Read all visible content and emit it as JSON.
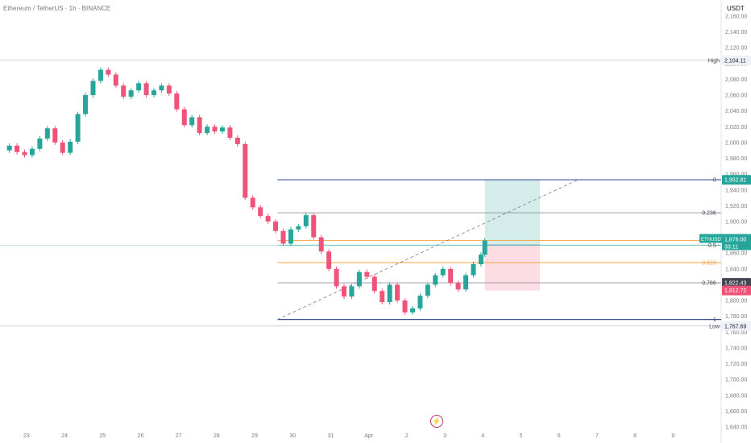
{
  "header": {
    "symbol": "Ethereum / TetherUS · 1h · BINANCE",
    "currency": "USDT"
  },
  "colors": {
    "up": "#26a69a",
    "down": "#ef5379",
    "fib_blue": "#3d4b9c",
    "fib_grey": "#8c8f99",
    "fib_teal": "#4db6ac",
    "fib_orange": "#f7a23a",
    "target_zone": "#26a69a",
    "stop_zone": "#ef5379"
  },
  "footer": {
    "event_icon": "lightning-icon"
  },
  "chart_data": {
    "type": "candlestick",
    "ylim": [
      1630,
      2175
    ],
    "y_ticks": [
      "1,640.00",
      "1,660.00",
      "1,680.00",
      "1,700.00",
      "1,720.00",
      "1,740.00",
      "1,760.00",
      "1,780.00",
      "1,800.00",
      "1,820.00",
      "1,840.00",
      "1,860.00",
      "1,880.00",
      "1,900.00",
      "1,920.00",
      "1,940.00",
      "1,960.00",
      "1,980.00",
      "2,000.00",
      "2,020.00",
      "2,040.00",
      "2,060.00",
      "2,080.00",
      "2,100.00",
      "2,120.00",
      "2,140.00",
      "2,160.00"
    ],
    "x_ticks": [
      {
        "label": "23",
        "day": 23
      },
      {
        "label": "24",
        "day": 24
      },
      {
        "label": "25",
        "day": 25
      },
      {
        "label": "26",
        "day": 26
      },
      {
        "label": "27",
        "day": 27
      },
      {
        "label": "28",
        "day": 28
      },
      {
        "label": "29",
        "day": 29
      },
      {
        "label": "30",
        "day": 30
      },
      {
        "label": "31",
        "day": 31
      },
      {
        "label": "Apr",
        "day": 32
      },
      {
        "label": "2",
        "day": 33
      },
      {
        "label": "3",
        "day": 34
      },
      {
        "label": "4",
        "day": 35
      },
      {
        "label": "5",
        "day": 36
      },
      {
        "label": "6",
        "day": 37
      },
      {
        "label": "7",
        "day": 38
      },
      {
        "label": "8",
        "day": 39
      },
      {
        "label": "9",
        "day": 40
      }
    ],
    "candles": [
      [
        22.55,
        1990,
        1996
      ],
      [
        22.75,
        1996,
        1988
      ],
      [
        22.95,
        1988,
        1984
      ],
      [
        23.15,
        1984,
        1992
      ],
      [
        23.35,
        1992,
        2005
      ],
      [
        23.55,
        2005,
        2018
      ],
      [
        23.75,
        2018,
        2000
      ],
      [
        23.95,
        2000,
        1987
      ],
      [
        24.15,
        1987,
        2001
      ],
      [
        24.35,
        2001,
        2036
      ],
      [
        24.55,
        2036,
        2060
      ],
      [
        24.75,
        2060,
        2078
      ],
      [
        24.95,
        2078,
        2092
      ],
      [
        25.15,
        2092,
        2086
      ],
      [
        25.35,
        2086,
        2072
      ],
      [
        25.55,
        2072,
        2058
      ],
      [
        25.75,
        2058,
        2066
      ],
      [
        25.95,
        2066,
        2075
      ],
      [
        26.15,
        2075,
        2060
      ],
      [
        26.35,
        2060,
        2066
      ],
      [
        26.55,
        2066,
        2072
      ],
      [
        26.75,
        2072,
        2062
      ],
      [
        26.95,
        2062,
        2042
      ],
      [
        27.15,
        2042,
        2022
      ],
      [
        27.35,
        2022,
        2032
      ],
      [
        27.55,
        2032,
        2012
      ],
      [
        27.75,
        2012,
        2020
      ],
      [
        27.95,
        2020,
        2014
      ],
      [
        28.15,
        2014,
        2019
      ],
      [
        28.35,
        2019,
        2006
      ],
      [
        28.55,
        2006,
        1998
      ],
      [
        28.75,
        1998,
        1930
      ],
      [
        28.95,
        1930,
        1918
      ],
      [
        29.15,
        1918,
        1907
      ],
      [
        29.35,
        1907,
        1900
      ],
      [
        29.55,
        1900,
        1888
      ],
      [
        29.75,
        1888,
        1872
      ],
      [
        29.95,
        1872,
        1890
      ],
      [
        30.15,
        1890,
        1894
      ],
      [
        30.35,
        1894,
        1908
      ],
      [
        30.55,
        1908,
        1880
      ],
      [
        30.75,
        1880,
        1862
      ],
      [
        30.95,
        1862,
        1840
      ],
      [
        31.15,
        1840,
        1818
      ],
      [
        31.35,
        1818,
        1805
      ],
      [
        31.55,
        1805,
        1818
      ],
      [
        31.75,
        1818,
        1836
      ],
      [
        31.95,
        1836,
        1830
      ],
      [
        32.15,
        1830,
        1812
      ],
      [
        32.35,
        1812,
        1798
      ],
      [
        32.55,
        1798,
        1820
      ],
      [
        32.75,
        1820,
        1800
      ],
      [
        32.95,
        1800,
        1785
      ],
      [
        33.15,
        1785,
        1790
      ],
      [
        33.35,
        1790,
        1806
      ],
      [
        33.55,
        1806,
        1820
      ],
      [
        33.75,
        1820,
        1832
      ],
      [
        33.95,
        1832,
        1840
      ],
      [
        34.15,
        1840,
        1822
      ],
      [
        34.35,
        1822,
        1814
      ],
      [
        34.55,
        1814,
        1832
      ],
      [
        34.75,
        1832,
        1846
      ],
      [
        34.95,
        1846,
        1858
      ],
      [
        35.05,
        1858,
        1876
      ]
    ],
    "levels": [
      {
        "label": "High",
        "value": 2104.11,
        "price_label": "2,104.11",
        "style": "hline"
      },
      {
        "label": "0",
        "value": 1952.81,
        "price_label": "1,952.81",
        "style": "fib-blue",
        "badge": "green"
      },
      {
        "label": "0.236",
        "value": 1911,
        "style": "fib-grey"
      },
      {
        "label": "",
        "value": 1876.0,
        "style": "fib-orange"
      },
      {
        "label": "0.5",
        "value": 1870.12,
        "price_label": "1,870.12",
        "style": "fib-teal",
        "badge": "grey"
      },
      {
        "label": "0.618",
        "value": 1848,
        "style": "fib-orange"
      },
      {
        "label": "0.786",
        "value": 1822.43,
        "price_label": "1,822.43",
        "style": "fib-grey",
        "badge": "dark"
      },
      {
        "label": "1",
        "value": 1776,
        "style": "fib-blue"
      },
      {
        "label": "Low",
        "value": 1767.69,
        "price_label": "1,767.69",
        "style": "hline"
      }
    ],
    "current_price": {
      "symbol": "ETHUSDT",
      "value": 1876.0,
      "price_label": "1,876.00",
      "countdown": "33:11"
    },
    "stop_label": {
      "value": 1812.72,
      "price_label": "1,812.72"
    },
    "position": {
      "x_start": 35.05,
      "x_end": 36.5,
      "entry": 1870.12,
      "target": 1952.81,
      "stop": 1812.72
    },
    "trend_line": {
      "x1": 29.6,
      "y1": 1776,
      "x2": 37.5,
      "y2": 1952.81
    },
    "fib_x_start": 29.6,
    "fib_x_end": 40.2
  }
}
